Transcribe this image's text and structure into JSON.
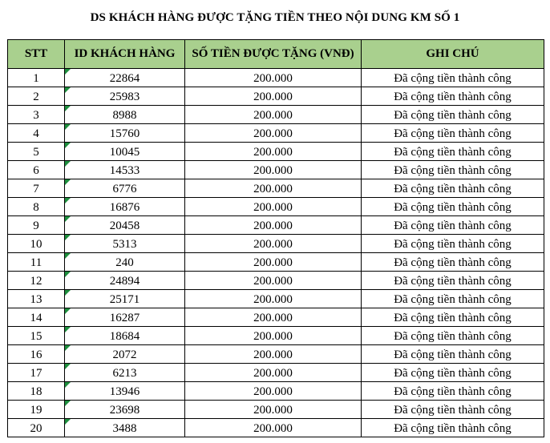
{
  "title": "DS KHÁCH HÀNG ĐƯỢC TẶNG TIỀN THEO NỘI DUNG KM SỐ 1",
  "columns": [
    "STT",
    "ID KHÁCH HÀNG",
    "SỐ TIỀN ĐƯỢC TẶNG (VNĐ)",
    "GHI CHÚ"
  ],
  "rows": [
    {
      "stt": "1",
      "id": "22864",
      "amount": "200.000",
      "note": "Đã cộng tiền thành công"
    },
    {
      "stt": "2",
      "id": "25983",
      "amount": "200.000",
      "note": "Đã cộng tiền thành công"
    },
    {
      "stt": "3",
      "id": "8988",
      "amount": "200.000",
      "note": "Đã cộng tiền thành công"
    },
    {
      "stt": "4",
      "id": "15760",
      "amount": "200.000",
      "note": "Đã cộng tiền thành công"
    },
    {
      "stt": "5",
      "id": "10045",
      "amount": "200.000",
      "note": "Đã cộng tiền thành công"
    },
    {
      "stt": "6",
      "id": "14533",
      "amount": "200.000",
      "note": "Đã cộng tiền thành công"
    },
    {
      "stt": "7",
      "id": "6776",
      "amount": "200.000",
      "note": "Đã cộng tiền thành công"
    },
    {
      "stt": "8",
      "id": "16876",
      "amount": "200.000",
      "note": "Đã cộng tiền thành công"
    },
    {
      "stt": "9",
      "id": "20458",
      "amount": "200.000",
      "note": "Đã cộng tiền thành công"
    },
    {
      "stt": "10",
      "id": "5313",
      "amount": "200.000",
      "note": "Đã cộng tiền thành công"
    },
    {
      "stt": "11",
      "id": "240",
      "amount": "200.000",
      "note": "Đã cộng tiền thành công"
    },
    {
      "stt": "12",
      "id": "24894",
      "amount": "200.000",
      "note": "Đã cộng tiền thành công"
    },
    {
      "stt": "13",
      "id": "25171",
      "amount": "200.000",
      "note": "Đã cộng tiền thành công"
    },
    {
      "stt": "14",
      "id": "16287",
      "amount": "200.000",
      "note": "Đã cộng tiền thành công"
    },
    {
      "stt": "15",
      "id": "18684",
      "amount": "200.000",
      "note": "Đã cộng tiền thành công"
    },
    {
      "stt": "16",
      "id": "2072",
      "amount": "200.000",
      "note": "Đã cộng tiền thành công"
    },
    {
      "stt": "17",
      "id": "6213",
      "amount": "200.000",
      "note": "Đã cộng tiền thành công"
    },
    {
      "stt": "18",
      "id": "13946",
      "amount": "200.000",
      "note": "Đã cộng tiền thành công"
    },
    {
      "stt": "19",
      "id": "23698",
      "amount": "200.000",
      "note": "Đã cộng tiền thành công"
    },
    {
      "stt": "20",
      "id": "3488",
      "amount": "200.000",
      "note": "Đã cộng tiền thành công"
    }
  ],
  "colors": {
    "header_fill": "#a9d08e",
    "number_stored_as_text_marker": "#1e8f3e"
  }
}
